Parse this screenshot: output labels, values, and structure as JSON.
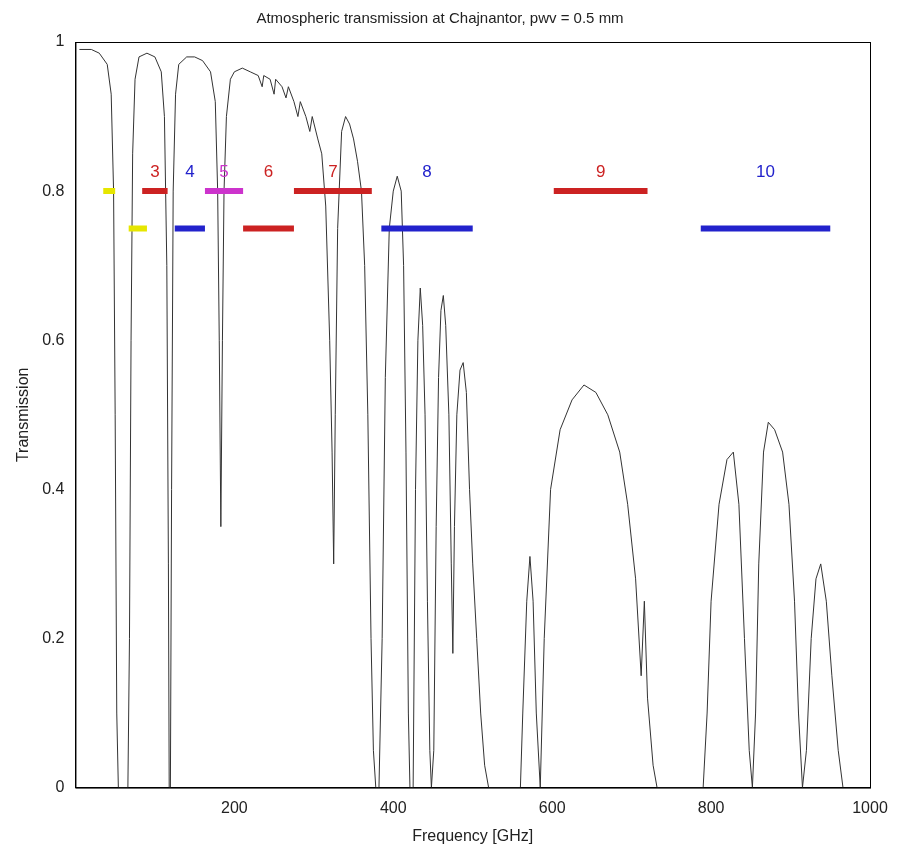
{
  "chart_data": {
    "type": "line",
    "title": "Atmospheric transmission at Chajnantor, pwv = 0.5 mm",
    "x_label": "Frequency [GHz]",
    "y_label": "Transmission",
    "xlim": [
      0,
      1000
    ],
    "xticks": [
      200,
      400,
      600,
      800,
      1000
    ],
    "ylim": [
      0,
      1
    ],
    "yticks": [
      0,
      0.2,
      0.4,
      0.6,
      0.8,
      1
    ],
    "grid": false,
    "color": "#333333",
    "x": [
      5,
      20,
      30,
      40,
      45,
      48,
      50,
      52,
      54,
      66,
      68,
      70,
      72,
      75,
      80,
      90,
      100,
      108,
      112,
      115,
      117,
      118,
      119.5,
      121,
      123,
      126,
      130,
      140,
      150,
      160,
      170,
      176,
      179,
      181,
      183,
      185,
      187,
      190,
      195,
      200,
      210,
      220,
      230,
      235,
      237,
      245,
      250,
      252,
      260,
      265,
      268,
      275,
      280,
      283,
      290,
      295,
      298,
      305,
      310,
      315,
      320,
      323,
      325,
      327,
      330,
      335,
      340,
      345,
      350,
      355,
      360,
      364,
      368,
      372,
      375,
      378,
      382,
      386,
      390,
      395,
      400,
      405,
      410,
      413,
      416,
      419,
      421,
      425,
      428,
      431,
      434,
      437,
      440,
      443,
      446,
      448,
      451,
      454,
      457,
      460,
      463,
      466,
      470,
      473,
      475,
      477,
      480,
      484,
      488,
      492,
      496,
      500,
      505,
      510,
      515,
      520,
      560,
      563,
      568,
      572,
      576,
      580,
      585,
      590,
      598,
      610,
      625,
      640,
      655,
      670,
      685,
      695,
      705,
      712,
      716,
      720,
      727,
      732,
      790,
      795,
      800,
      810,
      820,
      828,
      835,
      842,
      848,
      852,
      856,
      860,
      866,
      872,
      880,
      890,
      898,
      905,
      910,
      915,
      920,
      926,
      932,
      938,
      945,
      952,
      960,
      966
    ],
    "values": [
      0.99,
      0.99,
      0.985,
      0.97,
      0.93,
      0.8,
      0.5,
      0.1,
      0,
      0,
      0.2,
      0.6,
      0.85,
      0.95,
      0.98,
      0.985,
      0.98,
      0.96,
      0.9,
      0.7,
      0.3,
      0,
      0,
      0.4,
      0.8,
      0.93,
      0.97,
      0.98,
      0.98,
      0.975,
      0.96,
      0.92,
      0.8,
      0.6,
      0.35,
      0.6,
      0.8,
      0.9,
      0.95,
      0.96,
      0.965,
      0.96,
      0.955,
      0.94,
      0.955,
      0.95,
      0.93,
      0.95,
      0.94,
      0.925,
      0.94,
      0.92,
      0.9,
      0.92,
      0.9,
      0.88,
      0.9,
      0.87,
      0.85,
      0.78,
      0.6,
      0.45,
      0.3,
      0.5,
      0.75,
      0.88,
      0.9,
      0.89,
      0.87,
      0.84,
      0.8,
      0.7,
      0.5,
      0.2,
      0.05,
      0,
      0,
      0.2,
      0.55,
      0.75,
      0.8,
      0.82,
      0.8,
      0.7,
      0.45,
      0.1,
      0,
      0,
      0.4,
      0.6,
      0.67,
      0.62,
      0.5,
      0.25,
      0.05,
      0,
      0.05,
      0.35,
      0.55,
      0.64,
      0.66,
      0.62,
      0.5,
      0.3,
      0.18,
      0.35,
      0.5,
      0.56,
      0.57,
      0.53,
      0.4,
      0.3,
      0.2,
      0.1,
      0.03,
      0,
      0,
      0.1,
      0.25,
      0.31,
      0.25,
      0.1,
      0,
      0.2,
      0.4,
      0.48,
      0.52,
      0.54,
      0.53,
      0.5,
      0.45,
      0.38,
      0.28,
      0.15,
      0.25,
      0.12,
      0.03,
      0,
      0,
      0.1,
      0.25,
      0.38,
      0.44,
      0.45,
      0.38,
      0.2,
      0.05,
      0,
      0.1,
      0.3,
      0.45,
      0.49,
      0.48,
      0.45,
      0.38,
      0.25,
      0.1,
      0,
      0.05,
      0.2,
      0.28,
      0.3,
      0.25,
      0.15,
      0.05,
      0
    ],
    "bands": [
      {
        "x": [
          35,
          50
        ],
        "y": 0.8,
        "color": "#e6e600"
      },
      {
        "x": [
          67,
          90
        ],
        "y": 0.75,
        "color": "#e6e600"
      },
      {
        "label": "3",
        "x": [
          84,
          116
        ],
        "y": 0.8,
        "color": "#cc2222"
      },
      {
        "label": "4",
        "x": [
          125,
          163
        ],
        "y": 0.75,
        "color": "#2222cc"
      },
      {
        "label": "5",
        "x": [
          163,
          211
        ],
        "y": 0.8,
        "color": "#cc33cc"
      },
      {
        "label": "6",
        "x": [
          211,
          275
        ],
        "y": 0.75,
        "color": "#cc2222"
      },
      {
        "label": "7",
        "x": [
          275,
          373
        ],
        "y": 0.8,
        "color": "#cc2222"
      },
      {
        "label": "8",
        "x": [
          385,
          500
        ],
        "y": 0.75,
        "color": "#2222cc"
      },
      {
        "label": "9",
        "x": [
          602,
          720
        ],
        "y": 0.8,
        "color": "#cc2222"
      },
      {
        "label": "10",
        "x": [
          787,
          950
        ],
        "y": 0.75,
        "color": "#2222cc"
      }
    ]
  }
}
